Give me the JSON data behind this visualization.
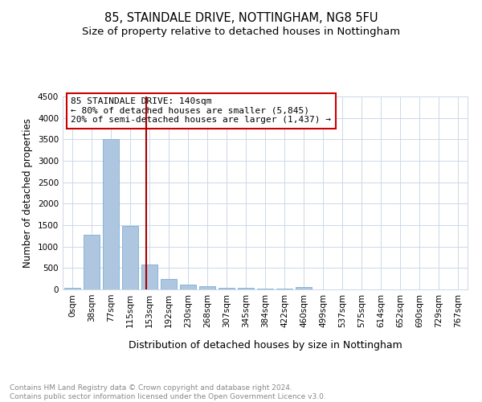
{
  "title": "85, STAINDALE DRIVE, NOTTINGHAM, NG8 5FU",
  "subtitle": "Size of property relative to detached houses in Nottingham",
  "xlabel": "Distribution of detached houses by size in Nottingham",
  "ylabel": "Number of detached properties",
  "categories": [
    "0sqm",
    "38sqm",
    "77sqm",
    "115sqm",
    "153sqm",
    "192sqm",
    "230sqm",
    "268sqm",
    "307sqm",
    "345sqm",
    "384sqm",
    "422sqm",
    "460sqm",
    "499sqm",
    "537sqm",
    "575sqm",
    "614sqm",
    "652sqm",
    "690sqm",
    "729sqm",
    "767sqm"
  ],
  "values": [
    30,
    1270,
    3500,
    1480,
    575,
    240,
    120,
    80,
    45,
    30,
    20,
    15,
    50,
    5,
    0,
    0,
    0,
    0,
    0,
    0,
    0
  ],
  "bar_color": "#aec6df",
  "bar_edge_color": "#7aafd4",
  "ylim": [
    0,
    4500
  ],
  "yticks": [
    0,
    500,
    1000,
    1500,
    2000,
    2500,
    3000,
    3500,
    4000,
    4500
  ],
  "vline_x": 3.84,
  "vline_color": "#aa0000",
  "annotation_line1": "85 STAINDALE DRIVE: 140sqm",
  "annotation_line2": "← 80% of detached houses are smaller (5,845)",
  "annotation_line3": "20% of semi-detached houses are larger (1,437) →",
  "annotation_box_color": "#ffffff",
  "annotation_box_edge": "#cc0000",
  "footnote": "Contains HM Land Registry data © Crown copyright and database right 2024.\nContains public sector information licensed under the Open Government Licence v3.0.",
  "bg_color": "#ffffff",
  "grid_color": "#ccd8e8",
  "title_fontsize": 10.5,
  "subtitle_fontsize": 9.5,
  "xlabel_fontsize": 9,
  "ylabel_fontsize": 8.5,
  "tick_fontsize": 7.5,
  "annot_fontsize": 8,
  "footnote_fontsize": 6.5,
  "footnote_color": "#888888"
}
